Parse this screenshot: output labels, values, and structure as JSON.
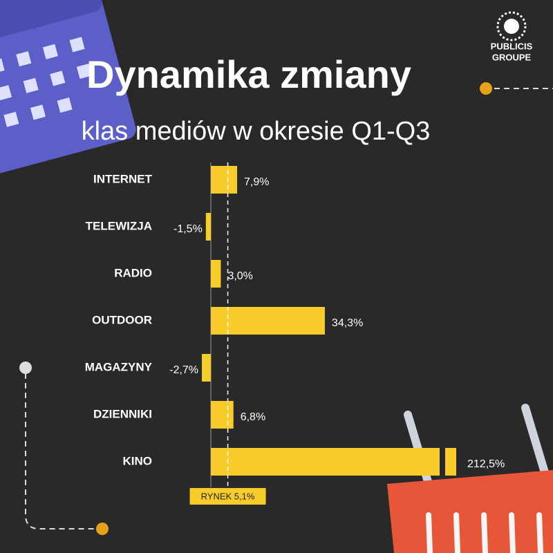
{
  "brand": [
    "PUBLICIS",
    "GROUPE"
  ],
  "chart_data": {
    "type": "hbar",
    "title": "Dynamika zmiany",
    "subtitle": "klas mediów w okresie Q1-Q3",
    "categories": [
      "INTERNET",
      "TELEWIZJA",
      "RADIO",
      "OUTDOOR",
      "MAGAZYNY",
      "DZIENNIKI",
      "KINO"
    ],
    "values": [
      7.9,
      -1.5,
      3.0,
      34.3,
      -2.7,
      6.8,
      212.5
    ],
    "value_labels": [
      "7,9%",
      "-1,5%",
      "3,0%",
      "34,3%",
      "-2,7%",
      "6,8%",
      "212,5%"
    ],
    "color": "#f8cc2a",
    "xlim": [
      -3,
      73
    ],
    "x_break": true,
    "reference": {
      "value": 5.1,
      "label": "RYNEK 5,1%"
    }
  }
}
